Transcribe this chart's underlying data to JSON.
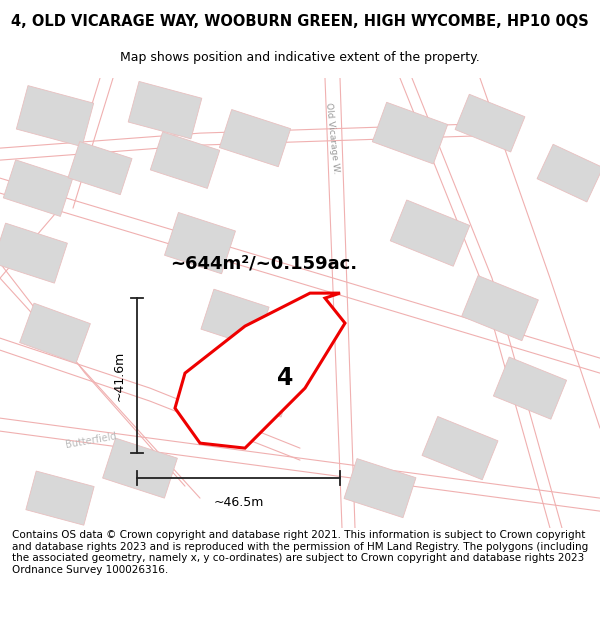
{
  "title": "4, OLD VICARAGE WAY, WOOBURN GREEN, HIGH WYCOMBE, HP10 0QS",
  "subtitle": "Map shows position and indicative extent of the property.",
  "footer": "Contains OS data © Crown copyright and database right 2021. This information is subject to Crown copyright and database rights 2023 and is reproduced with the permission of HM Land Registry. The polygons (including the associated geometry, namely x, y co-ordinates) are subject to Crown copyright and database rights 2023 Ordnance Survey 100026316.",
  "area_label": "~644m²/~0.159ac.",
  "width_label": "~46.5m",
  "height_label": "~41.6m",
  "plot_number": "4",
  "road_label": "Old Vicarage W.",
  "butterfield_label": "Butterfield",
  "plot_red": "#ee0000",
  "building_fill": "#d8d8d8",
  "building_edge": "#e8c0c0",
  "road_color": "#f0b0b0",
  "dim_color": "#222222",
  "label_gray": "#aaaaaa",
  "title_fontsize": 10.5,
  "subtitle_fontsize": 9.0,
  "footer_fontsize": 7.5,
  "area_fontsize": 13,
  "plot_num_fontsize": 17,
  "dim_fontsize": 9,
  "road_lbl_fontsize": 6.5,
  "street_lbl_fontsize": 7.0,
  "map_l": 0.0,
  "map_r": 1.0,
  "map_b": 0.0,
  "map_t": 1.0
}
